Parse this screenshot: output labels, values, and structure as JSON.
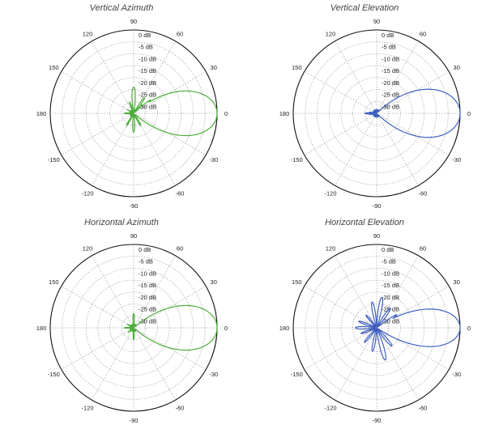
{
  "chart_data": [
    {
      "type": "polar",
      "title": "Vertical Azimuth",
      "color": "#4daf3a",
      "angle_ticks": [
        "0",
        "30",
        "60",
        "90",
        "120",
        "150",
        "180",
        "-150",
        "-120",
        "-90",
        "-60",
        "-30"
      ],
      "r_ticks": [
        "0 dB",
        "-5 dB",
        "-10 dB",
        "-15 dB",
        "-20 dB",
        "-25 dB",
        "-30 dB"
      ],
      "rlim": [
        -35,
        0
      ],
      "lobes": [
        {
          "angle": 0,
          "gain": 0,
          "width": 12
        },
        {
          "angle": 14,
          "gain": -25,
          "width": 3
        },
        {
          "angle": 25,
          "gain": -24,
          "width": 3
        },
        {
          "angle": 38,
          "gain": -26,
          "width": 3
        },
        {
          "angle": 55,
          "gain": -27,
          "width": 4
        },
        {
          "angle": 90,
          "gain": -24,
          "width": 5
        },
        {
          "angle": 110,
          "gain": -30,
          "width": 4
        },
        {
          "angle": 150,
          "gain": -32,
          "width": 4
        },
        {
          "angle": 180,
          "gain": -31,
          "width": 6
        },
        {
          "angle": -120,
          "gain": -29,
          "width": 4
        },
        {
          "angle": -90,
          "gain": -27,
          "width": 5
        },
        {
          "angle": -60,
          "gain": -29,
          "width": 4
        },
        {
          "angle": -35,
          "gain": -27,
          "width": 3
        },
        {
          "angle": -20,
          "gain": -26,
          "width": 3
        }
      ]
    },
    {
      "type": "polar",
      "title": "Vertical Elevation",
      "color": "#3f5fbf",
      "angle_ticks": [
        "0",
        "30",
        "60",
        "90",
        "120",
        "150",
        "180",
        "-150",
        "-120",
        "-90",
        "-60",
        "-30"
      ],
      "r_ticks": [
        "0 dB",
        "-5 dB",
        "-10 dB",
        "-15 dB",
        "-20 dB",
        "-25 dB",
        "-30 dB"
      ],
      "rlim": [
        -35,
        0
      ],
      "lobes": [
        {
          "angle": 0,
          "gain": 0,
          "width": 13
        },
        {
          "angle": 3,
          "gain": -30,
          "width": 3
        },
        {
          "angle": 180,
          "gain": -30,
          "width": 5
        },
        {
          "angle": 170,
          "gain": -32,
          "width": 3
        },
        {
          "angle": -170,
          "gain": -32,
          "width": 3
        }
      ]
    },
    {
      "type": "polar",
      "title": "Horizontal Azimuth",
      "color": "#4daf3a",
      "angle_ticks": [
        "0",
        "30",
        "60",
        "90",
        "120",
        "150",
        "180",
        "-150",
        "-120",
        "-90",
        "-60",
        "-30"
      ],
      "r_ticks": [
        "0 dB",
        "-5 dB",
        "-10 dB",
        "-15 dB",
        "-20 dB",
        "-25 dB",
        "-30 dB"
      ],
      "rlim": [
        -35,
        0
      ],
      "lobes": [
        {
          "angle": 0,
          "gain": 0,
          "width": 12
        },
        {
          "angle": 12,
          "gain": -27,
          "width": 3
        },
        {
          "angle": 22,
          "gain": -28,
          "width": 3
        },
        {
          "angle": 35,
          "gain": -30,
          "width": 3
        },
        {
          "angle": 90,
          "gain": -29,
          "width": 5
        },
        {
          "angle": 150,
          "gain": -32,
          "width": 5
        },
        {
          "angle": 180,
          "gain": -31,
          "width": 5
        },
        {
          "angle": -140,
          "gain": -32,
          "width": 4
        },
        {
          "angle": -90,
          "gain": -30,
          "width": 5
        },
        {
          "angle": -25,
          "gain": -29,
          "width": 3
        }
      ]
    },
    {
      "type": "polar",
      "title": "Horizontal Elevation",
      "color": "#3f5fbf",
      "angle_ticks": [
        "0",
        "30",
        "60",
        "90",
        "120",
        "150",
        "180",
        "-150",
        "-120",
        "-90",
        "-60",
        "-30"
      ],
      "r_ticks": [
        "0 dB",
        "-5 dB",
        "-10 dB",
        "-15 dB",
        "-20 dB",
        "-25 dB",
        "-30 dB"
      ],
      "rlim": [
        -35,
        0
      ],
      "lobes": [
        {
          "angle": 0,
          "gain": 0,
          "width": 10
        },
        {
          "angle": 10,
          "gain": -23,
          "width": 3
        },
        {
          "angle": 20,
          "gain": -22,
          "width": 3
        },
        {
          "angle": 33,
          "gain": -25,
          "width": 3
        },
        {
          "angle": 55,
          "gain": -25,
          "width": 4
        },
        {
          "angle": 80,
          "gain": -22,
          "width": 4
        },
        {
          "angle": 100,
          "gain": -24,
          "width": 4
        },
        {
          "angle": 130,
          "gain": -28,
          "width": 4
        },
        {
          "angle": 160,
          "gain": -27,
          "width": 4
        },
        {
          "angle": 180,
          "gain": -26,
          "width": 5
        },
        {
          "angle": -160,
          "gain": -28,
          "width": 4
        },
        {
          "angle": -130,
          "gain": -27,
          "width": 4
        },
        {
          "angle": -100,
          "gain": -25,
          "width": 4
        },
        {
          "angle": -75,
          "gain": -21,
          "width": 4
        },
        {
          "angle": -50,
          "gain": -25,
          "width": 4
        },
        {
          "angle": -25,
          "gain": -26,
          "width": 3
        }
      ]
    }
  ]
}
